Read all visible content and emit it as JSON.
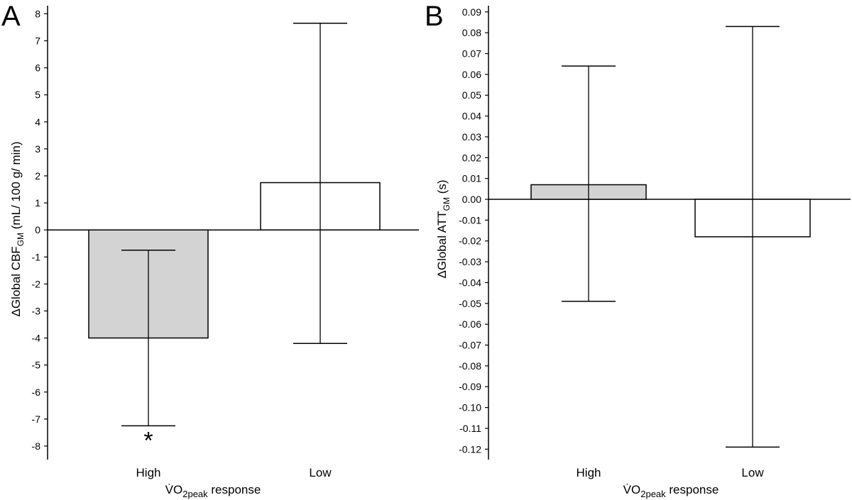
{
  "chart_data": [
    {
      "type": "bar",
      "panel_letter": "A",
      "categories": [
        "High",
        "Low"
      ],
      "values": [
        -4.0,
        1.75
      ],
      "error_low": [
        -7.25,
        -4.2
      ],
      "error_high": [
        -0.75,
        7.65
      ],
      "bar_colors": [
        "#d3d3d3",
        "#ffffff"
      ],
      "ylim": [
        -8.5,
        8.3
      ],
      "yticks": [
        8,
        7,
        6,
        5,
        4,
        3,
        2,
        1,
        0,
        -1,
        -2,
        -3,
        -4,
        -5,
        -6,
        -7,
        -8
      ],
      "ytick_labels": [
        "8",
        "7",
        "6",
        "5",
        "4",
        "3",
        "2",
        "1",
        "0",
        "-1",
        "-2",
        "-3",
        "-4",
        "-5",
        "-6",
        "-7",
        "-8"
      ],
      "ylabel": {
        "prefix": "ΔGlobal CBF",
        "sub": "GM",
        "suffix": " (mL/ 100 g/ min)"
      },
      "xlabel": {
        "prefix": "V̇O",
        "sub": "2peak",
        "suffix": " response"
      },
      "annotation": {
        "text": "*",
        "category": "High"
      }
    },
    {
      "type": "bar",
      "panel_letter": "B",
      "categories": [
        "High",
        "Low"
      ],
      "values": [
        0.007,
        -0.018
      ],
      "error_low": [
        -0.049,
        -0.119
      ],
      "error_high": [
        0.064,
        0.083
      ],
      "bar_colors": [
        "#d3d3d3",
        "#ffffff"
      ],
      "ylim": [
        -0.125,
        0.093
      ],
      "yticks": [
        0.09,
        0.08,
        0.07,
        0.06,
        0.05,
        0.04,
        0.03,
        0.02,
        0.01,
        0.0,
        -0.01,
        -0.02,
        -0.03,
        -0.04,
        -0.05,
        -0.06,
        -0.07,
        -0.08,
        -0.09,
        -0.1,
        -0.11,
        -0.12
      ],
      "ytick_labels": [
        "0.09",
        "0.08",
        "0.07",
        "0.06",
        "0.05",
        "0.04",
        "0.03",
        "0.02",
        "0.01",
        "0.00",
        "-0.01",
        "-0.02",
        "-0.03",
        "-0.04",
        "-0.05",
        "-0.06",
        "-0.07",
        "-0.08",
        "-0.09",
        "-0.10",
        "-0.11",
        "-0.12"
      ],
      "ylabel": {
        "prefix": "ΔGlobal ATT",
        "sub": "GM",
        "suffix": " (s)"
      },
      "xlabel": {
        "prefix": "V̇O",
        "sub": "2peak",
        "suffix": " response"
      }
    }
  ]
}
